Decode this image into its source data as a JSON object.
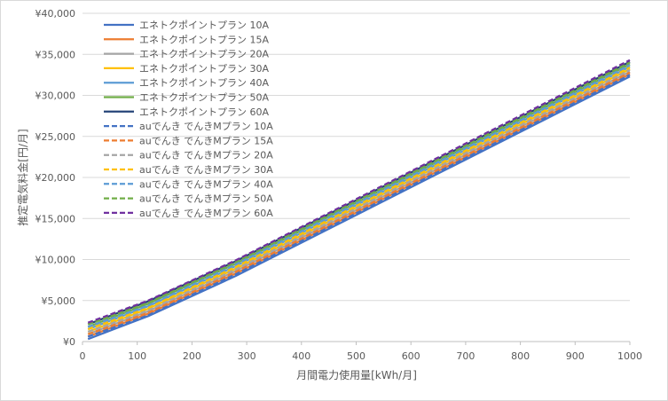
{
  "chart_data": {
    "type": "line",
    "xlabel": "月間電力使用量[kWh/月]",
    "ylabel": "推定電気料金[円/月]",
    "xlim": [
      0,
      1000
    ],
    "ylim": [
      0,
      40000
    ],
    "x_ticks": [
      "0",
      "100",
      "200",
      "300",
      "400",
      "500",
      "600",
      "700",
      "800",
      "900",
      "1000"
    ],
    "y_ticks": [
      "¥0",
      "¥5,000",
      "¥10,000",
      "¥15,000",
      "¥20,000",
      "¥25,000",
      "¥30,000",
      "¥35,000",
      "¥40,000"
    ],
    "grid": "horizontal",
    "legend_position": "top-left",
    "x": [
      10,
      120,
      280,
      1000
    ],
    "series": [
      {
        "name": "エネトクポイントプラン 10A",
        "color": "#4472c4",
        "dash": "solid",
        "values": [
          300,
          3100,
          8000,
          32300
        ]
      },
      {
        "name": "エネトクポイントプラン 15A",
        "color": "#ed7d31",
        "dash": "solid",
        "values": [
          600,
          3400,
          8300,
          32600
        ]
      },
      {
        "name": "エネトクポイントプラン 20A",
        "color": "#a5a5a5",
        "dash": "solid",
        "values": [
          900,
          3700,
          8600,
          32900
        ]
      },
      {
        "name": "エネトクポイントプラン 30A",
        "color": "#ffc000",
        "dash": "solid",
        "values": [
          1200,
          4000,
          8900,
          33200
        ]
      },
      {
        "name": "エネトクポイントプラン 40A",
        "color": "#5b9bd5",
        "dash": "solid",
        "values": [
          1500,
          4300,
          9200,
          33500
        ]
      },
      {
        "name": "エネトクポイントプラン 50A",
        "color": "#70ad47",
        "dash": "solid",
        "values": [
          1800,
          4600,
          9500,
          33800
        ]
      },
      {
        "name": "エネトクポイントプラン 60A",
        "color": "#264478",
        "dash": "solid",
        "values": [
          2100,
          4900,
          9800,
          34100
        ]
      },
      {
        "name": "auでんき でんきMプラン 10A",
        "color": "#4472c4",
        "dash": "dashed",
        "values": [
          600,
          3200,
          8200,
          32500
        ]
      },
      {
        "name": "auでんき でんきMプラン 15A",
        "color": "#ed7d31",
        "dash": "dashed",
        "values": [
          900,
          3500,
          8500,
          32800
        ]
      },
      {
        "name": "auでんき でんきMプラン 20A",
        "color": "#a5a5a5",
        "dash": "dashed",
        "values": [
          1200,
          3800,
          8800,
          33100
        ]
      },
      {
        "name": "auでんき でんきMプラン 30A",
        "color": "#ffc000",
        "dash": "dashed",
        "values": [
          1500,
          4100,
          9100,
          33400
        ]
      },
      {
        "name": "auでんき でんきMプラン 40A",
        "color": "#5b9bd5",
        "dash": "dashed",
        "values": [
          1800,
          4400,
          9400,
          33700
        ]
      },
      {
        "name": "auでんき でんきMプラン 50A",
        "color": "#70ad47",
        "dash": "dashed",
        "values": [
          2100,
          4700,
          9700,
          34000
        ]
      },
      {
        "name": "auでんき でんきMプラン 60A",
        "color": "#7030a0",
        "dash": "dashed",
        "values": [
          2300,
          5000,
          9900,
          34300
        ]
      }
    ]
  }
}
